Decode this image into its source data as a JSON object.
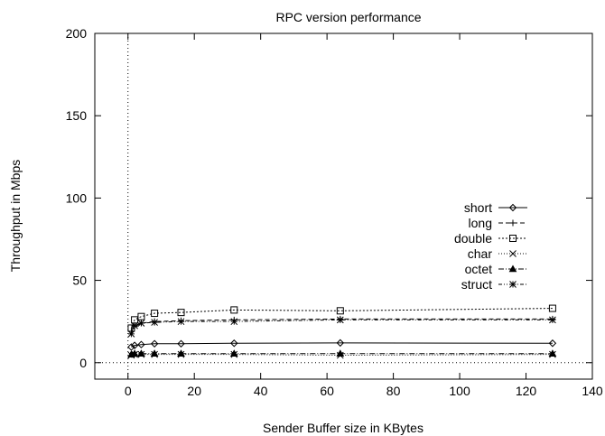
{
  "chart_data": {
    "type": "line",
    "title": "RPC version performance",
    "xlabel": "Sender Buffer size in KBytes",
    "ylabel": "Throughput in Mbps",
    "xlim": [
      -10,
      140
    ],
    "ylim": [
      -10,
      200
    ],
    "xticks": [
      0,
      20,
      40,
      60,
      80,
      100,
      120,
      140
    ],
    "yticks": [
      0,
      50,
      100,
      150,
      200
    ],
    "legend_position": "right",
    "zero_lines": true,
    "x": [
      1,
      2,
      4,
      8,
      16,
      32,
      64,
      128
    ],
    "series": [
      {
        "name": "short",
        "marker": "diamond",
        "dash": "solid",
        "values": [
          9.5,
          10.5,
          11,
          11.5,
          11.5,
          11.8,
          12,
          11.8
        ]
      },
      {
        "name": "long",
        "marker": "plus",
        "dash": "dashed",
        "values": [
          19,
          22,
          24,
          25,
          25.5,
          26,
          26.5,
          26.5
        ]
      },
      {
        "name": "double",
        "marker": "square",
        "dash": "dotted",
        "values": [
          21,
          26,
          28,
          30,
          30.5,
          32,
          31.5,
          33
        ]
      },
      {
        "name": "char",
        "marker": "cross",
        "dash": "finedot",
        "values": [
          4.5,
          5,
          5,
          5,
          5,
          5,
          4.5,
          5
        ]
      },
      {
        "name": "octet",
        "marker": "triangle",
        "dash": "dashdot",
        "values": [
          5,
          5.5,
          5.5,
          5.5,
          5.5,
          5.5,
          5.5,
          5.5
        ]
      },
      {
        "name": "struct",
        "marker": "star",
        "dash": "dashdot2",
        "values": [
          17.5,
          22.5,
          24,
          24.5,
          25,
          25,
          26,
          26
        ]
      }
    ]
  }
}
